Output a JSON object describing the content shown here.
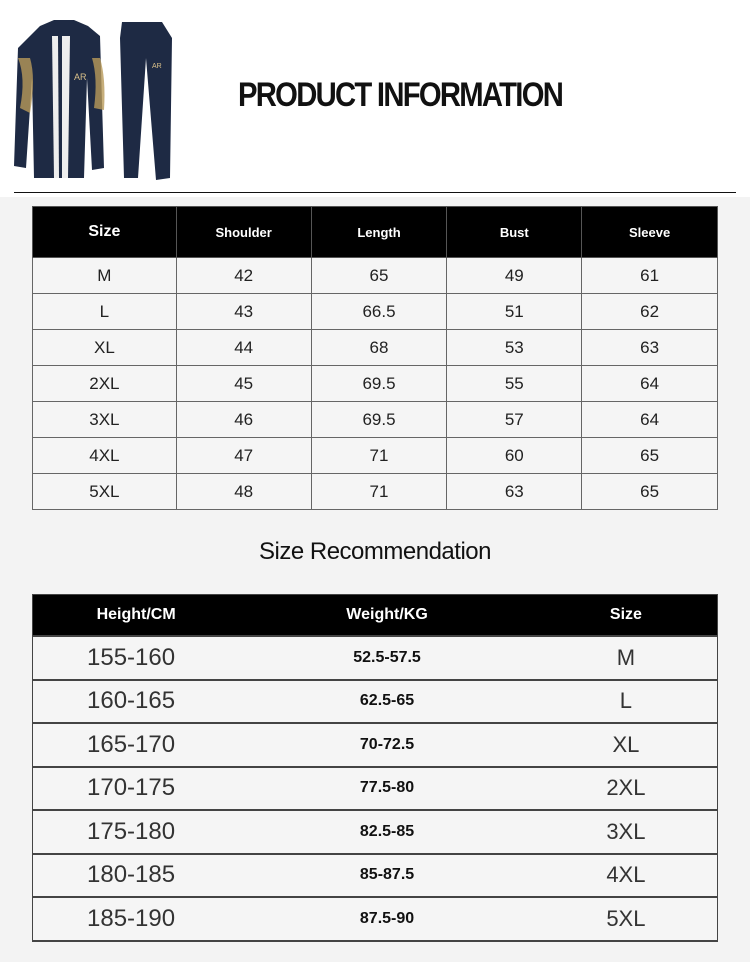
{
  "header": {
    "title": "PRODUCT INFORMATION"
  },
  "size_chart": {
    "columns": [
      "Size",
      "Shoulder",
      "Length",
      "Bust",
      "Sleeve"
    ],
    "rows": [
      [
        "M",
        "42",
        "65",
        "49",
        "61"
      ],
      [
        "L",
        "43",
        "66.5",
        "51",
        "62"
      ],
      [
        "XL",
        "44",
        "68",
        "53",
        "63"
      ],
      [
        "2XL",
        "45",
        "69.5",
        "55",
        "64"
      ],
      [
        "3XL",
        "46",
        "69.5",
        "57",
        "64"
      ],
      [
        "4XL",
        "47",
        "71",
        "60",
        "65"
      ],
      [
        "5XL",
        "48",
        "71",
        "63",
        "65"
      ]
    ]
  },
  "recommendation": {
    "title": "Size Recommendation",
    "columns": [
      "Height/CM",
      "Weight/KG",
      "Size"
    ],
    "rows": [
      [
        "155-160",
        "52.5-57.5",
        "M"
      ],
      [
        "160-165",
        "62.5-65",
        "L"
      ],
      [
        "165-170",
        "70-72.5",
        "XL"
      ],
      [
        "170-175",
        "77.5-80",
        "2XL"
      ],
      [
        "175-180",
        "82.5-85",
        "3XL"
      ],
      [
        "180-185",
        "85-87.5",
        "4XL"
      ],
      [
        "185-190",
        "87.5-90",
        "5XL"
      ]
    ]
  },
  "product_image": {
    "logo_text": "AR",
    "colors": {
      "garment": "#1e2a44",
      "print": "#b89a5a"
    }
  }
}
